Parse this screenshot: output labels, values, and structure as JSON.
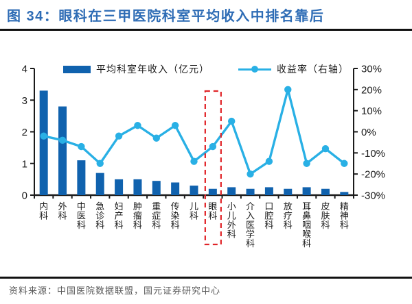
{
  "header": {
    "figure_label": "图 34：",
    "title": "眼科在三甲医院科室平均收入中排名靠后"
  },
  "legend": {
    "bar_label": "平均科室年收入（亿元）",
    "line_label": "收益率（右轴）"
  },
  "footer": {
    "source": "资料来源：中国医院数据联盟，国元证券研究中心"
  },
  "colors": {
    "bar": "#1062ae",
    "line": "#29b0e5",
    "title": "#2e6cb5",
    "axis": "#1a1a1a",
    "source_text": "#595959",
    "highlight": "#e02428"
  },
  "chart_data": {
    "type": "bar+line combo",
    "title": "眼科在三甲医院科室平均收入中排名靠后",
    "categories": [
      "内科",
      "外科",
      "中医科",
      "急诊科",
      "妇产科",
      "肿瘤科",
      "重症科",
      "传染科",
      "儿科",
      "眼科",
      "小儿外科",
      "介入医学科",
      "口腔科",
      "放疗科",
      "耳鼻咽喉科",
      "皮肤科",
      "精神科"
    ],
    "series": [
      {
        "name": "平均科室年收入（亿元）",
        "type": "bar",
        "axis": "left",
        "values": [
          3.3,
          2.8,
          1.1,
          0.7,
          0.5,
          0.5,
          0.45,
          0.4,
          0.3,
          0.2,
          0.25,
          0.2,
          0.25,
          0.2,
          0.25,
          0.2,
          0.1
        ]
      },
      {
        "name": "收益率（右轴）",
        "type": "line",
        "axis": "right",
        "unit": "%",
        "values": [
          -2,
          -4,
          -7,
          -15,
          -2,
          3,
          -3,
          3,
          -14,
          -7,
          5,
          -20,
          -14,
          20,
          -15,
          -8,
          -15
        ]
      }
    ],
    "left_axis": {
      "min": 0,
      "max": 4,
      "tick_labels": [
        "4",
        "3",
        "2",
        "1",
        "0"
      ]
    },
    "right_axis": {
      "min": -30,
      "max": 30,
      "tick_labels": [
        "30%",
        "20%",
        "10%",
        "0%",
        "-10%",
        "-20%",
        "-30%"
      ]
    },
    "grid": false,
    "legend_position": "top",
    "highlight": {
      "category": "眼科",
      "index": 9,
      "style": "red dashed box"
    }
  }
}
